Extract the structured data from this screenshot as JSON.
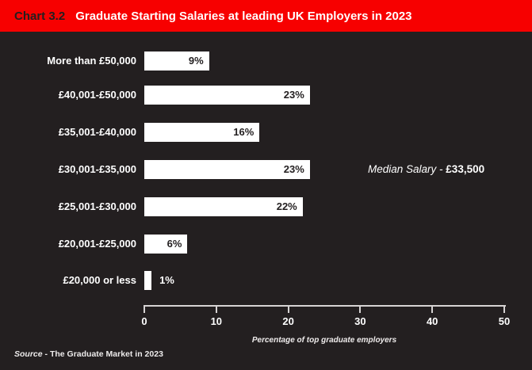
{
  "header": {
    "tag": "Chart 3.2",
    "title": "Graduate Starting Salaries at leading UK Employers in 2023"
  },
  "chart_data": {
    "type": "bar",
    "orientation": "horizontal",
    "title": "Graduate Starting Salaries at leading UK Employers in 2023",
    "categories": [
      "More than £50,000",
      "£40,001-£50,000",
      "£35,001-£40,000",
      "£30,001-£35,000",
      "£25,001-£30,000",
      "£20,001-£25,000",
      "£20,000 or less"
    ],
    "values": [
      9,
      23,
      16,
      23,
      22,
      6,
      1
    ],
    "value_labels": [
      "9%",
      "23%",
      "16%",
      "23%",
      "22%",
      "6%",
      "1%"
    ],
    "xlabel": "Percentage of top graduate employers",
    "xlim": [
      0,
      50
    ],
    "xticks": [
      0,
      10,
      20,
      30,
      40,
      50
    ],
    "grid": "off",
    "annotation": {
      "prefix": "Median Salary - ",
      "value": "£33,500"
    },
    "colors": {
      "background": "#231f20",
      "header_bar": "#f70000",
      "bar_fill": "#ffffff",
      "bar_label_inside": "#231f20",
      "text": "#ffffff",
      "axis": "#d6d3d3"
    }
  },
  "source": {
    "prefix": "Source",
    "text": " - The Graduate Market in 2023"
  }
}
